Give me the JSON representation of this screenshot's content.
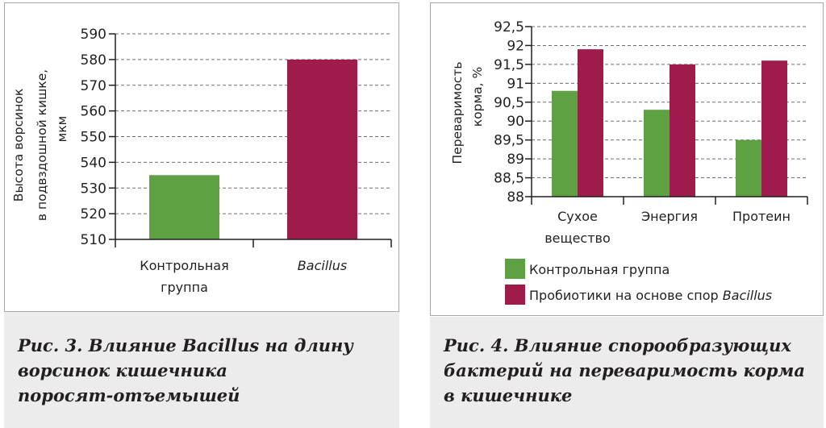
{
  "colors": {
    "control": "#5ea142",
    "bacillus": "#9e1b4b",
    "caption_bg": "#ececec",
    "border": "#a7a9ac"
  },
  "chart_data": [
    {
      "type": "bar",
      "title": "",
      "ylabel_lines": [
        "Высота ворсинок",
        "в подвздошной кишке,",
        "мкм"
      ],
      "xlabel": "",
      "categories": [
        [
          "Контрольная",
          "группа"
        ],
        [
          "Bacillus"
        ]
      ],
      "values": [
        535,
        580
      ],
      "ylim": [
        510,
        590
      ],
      "yticks": [
        "510",
        "520",
        "530",
        "540",
        "550",
        "560",
        "570",
        "580",
        "590"
      ],
      "grid": true,
      "caption_lines": [
        "Рис. 3. Влияние Bacillus на длину",
        "ворсинок кишечника",
        "поросят-отъемышей"
      ]
    },
    {
      "type": "bar",
      "title": "",
      "ylabel_lines": [
        "Переваримость",
        "корма, %"
      ],
      "xlabel": "",
      "categories": [
        [
          "Сухое",
          "вещество"
        ],
        [
          "Энергия"
        ],
        [
          "Протеин"
        ]
      ],
      "series": [
        {
          "name": "Контрольная группа",
          "values": [
            90.8,
            90.3,
            89.5
          ]
        },
        {
          "name": "Пробиотики на основе спор ",
          "name_italic": "Bacillus",
          "values": [
            91.9,
            91.5,
            91.6
          ]
        }
      ],
      "ylim": [
        88,
        92.5
      ],
      "yticks": [
        "88",
        "88,5",
        "89",
        "89,5",
        "90",
        "90,5",
        "91",
        "91,5",
        "92",
        "92,5"
      ],
      "grid": true,
      "legend_position": "bottom",
      "caption_lines": [
        "Рис. 4. Влияние спорообразующих",
        "бактерий на переваримость корма",
        "в кишечнике"
      ]
    }
  ]
}
